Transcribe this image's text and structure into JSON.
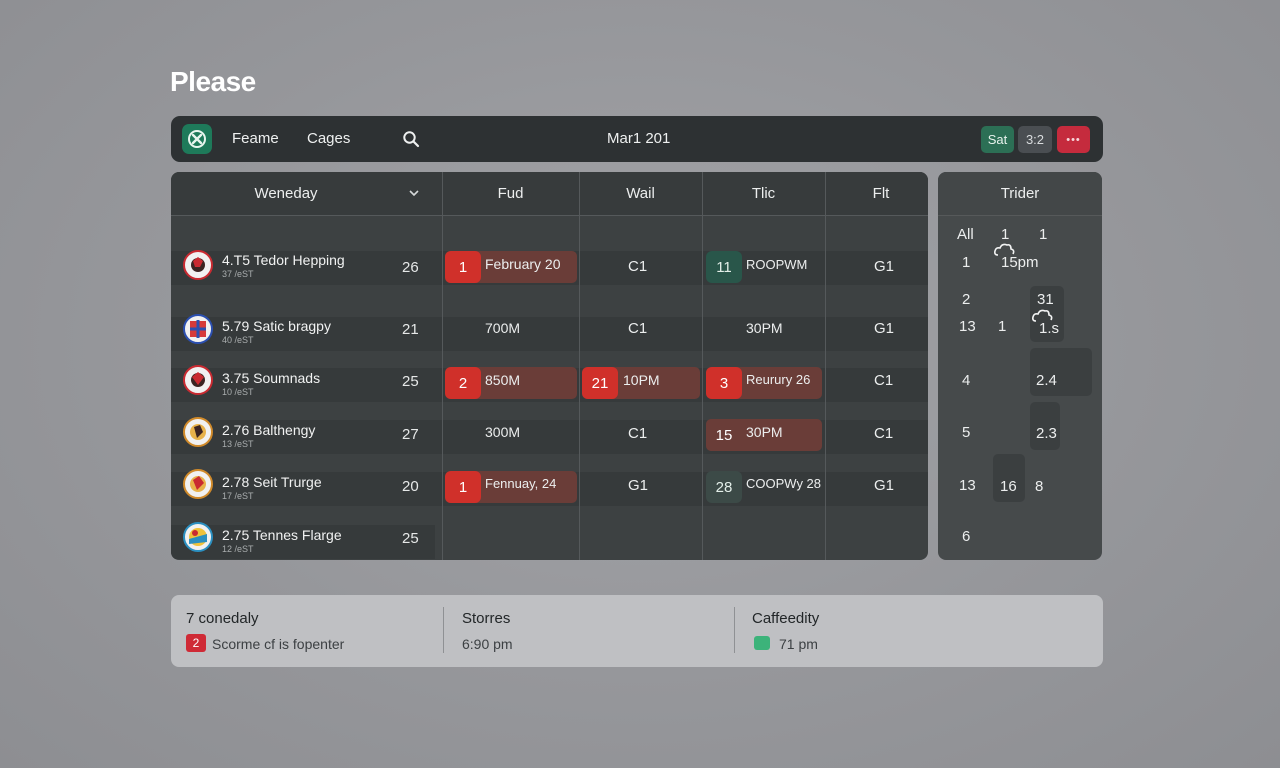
{
  "page": {
    "title": "Please"
  },
  "topbar": {
    "nav": [
      "Feame",
      "Cages"
    ],
    "date": "Mar1 201",
    "pills": {
      "sat": "Sat",
      "time": "3:2",
      "more": "•••"
    },
    "colors": {
      "logo": "#1e7a5a",
      "sat": "#2c6f55",
      "more": "#c52b3d"
    }
  },
  "table": {
    "columns": [
      "Weneday",
      "Fud",
      "Wail",
      "Tlic",
      "Flt"
    ],
    "rows": [
      {
        "team": "4.T5 Tedor Hepping",
        "sub": "37 /eST",
        "score": "26",
        "fud_badge": "1",
        "fud": "February 20",
        "wail": "C1",
        "tlic_badge": "11",
        "tlic": "ROOPWM",
        "flt": "G1"
      },
      {
        "team": "5.79 Satic bragpy",
        "sub": "40 /eST",
        "score": "21",
        "fud": "700M",
        "wail": "C1",
        "tlic": "30PM",
        "flt": "G1"
      },
      {
        "team": "3.75 Soumnads",
        "sub": "10 /eST",
        "score": "25",
        "fud_badge": "2",
        "fud": "850M",
        "wail_badge": "21",
        "wail": "10PM",
        "tlic_badge": "3",
        "tlic": "Reurury 26",
        "flt": "C1"
      },
      {
        "team": "2.76 Balthengy",
        "sub": "13 /eST",
        "score": "27",
        "fud": "300M",
        "wail": "C1",
        "tlic_badge": "15",
        "tlic": "30PM",
        "flt": "C1"
      },
      {
        "team": "2.78 Seit Trurge",
        "sub": "17 /eST",
        "score": "20",
        "fud_badge": "1",
        "fud": "Fennuay, 24",
        "wail": "G1",
        "tlic_badge": "28",
        "tlic": "COOPWy 28",
        "flt": "G1"
      },
      {
        "team": "2.75 Tennes Flarge",
        "sub": "12 /eST",
        "score": "25"
      }
    ]
  },
  "right_panel": {
    "title": "Trider",
    "cells": [
      "All",
      "1",
      "1",
      "1",
      "15pm",
      "2",
      "31",
      "13",
      "1",
      "1.s",
      "4",
      "2.4",
      "5",
      "2.3",
      "13",
      "16",
      "8",
      "6"
    ]
  },
  "bottom": {
    "col1": {
      "title": "7 conedaly",
      "badge": "2",
      "text": "Scorme cf is fopenter"
    },
    "col2": {
      "title": "Storres",
      "text": "6:90 pm"
    },
    "col3": {
      "title": "Caffeedity",
      "text": "71 pm"
    }
  }
}
